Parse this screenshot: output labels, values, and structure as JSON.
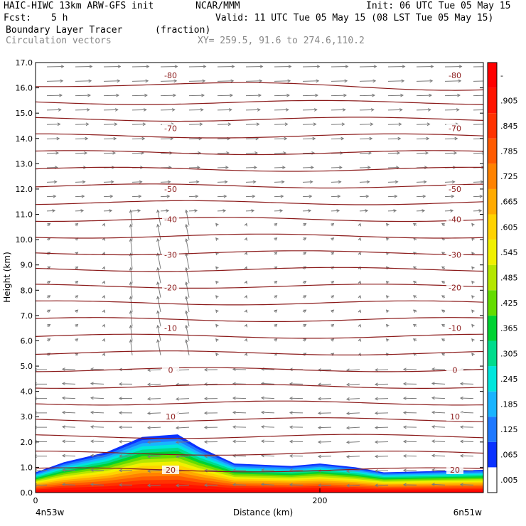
{
  "header": {
    "model": "HAIC-HIWC 13km ARW-GFS init",
    "center": "NCAR/MMM",
    "init": "Init: 06 UTC Tue 05 May 15",
    "fcst_label": "Fcst:",
    "fcst_value": "5 h",
    "valid": "Valid: 11 UTC Tue 05 May 15 (08 LST Tue 05 May 15)",
    "field": "Boundary Layer Tracer",
    "units": "(fraction)",
    "vectors": "Circulation vectors",
    "xy": "XY= 259.5, 91.6 to 274.6,110.2"
  },
  "chart_data": {
    "type": "heatmap",
    "title": "Boundary Layer Tracer",
    "xlabel": "Distance (km)",
    "ylabel": "Height (km)",
    "xlim": [
      0,
      315
    ],
    "ylim": [
      0,
      17
    ],
    "x_ticks": [
      {
        "value": 0,
        "label": "0"
      },
      {
        "value": 200,
        "label": "200"
      }
    ],
    "x_endpoints": {
      "left": "4n53w",
      "right": "6n51w"
    },
    "y_ticks": [
      "0.0",
      "1.0",
      "2.0",
      "3.0",
      "4.0",
      "5.0",
      "6.0",
      "7.0",
      "8.0",
      "9.0",
      "10.0",
      "11.0",
      "12.0",
      "13.0",
      "14.0",
      "15.0",
      "16.0",
      "17.0"
    ],
    "colorbar": {
      "labels": [
        ".005",
        ".065",
        ".125",
        ".185",
        ".245",
        ".305",
        ".365",
        ".425",
        ".485",
        ".545",
        ".605",
        ".665",
        ".725",
        ".785",
        ".845",
        ".905",
        "-"
      ],
      "colors": [
        "#ffffff",
        "#0a32ff",
        "#1e78ff",
        "#19b4ff",
        "#00e6dc",
        "#00dc8c",
        "#00d232",
        "#64dc00",
        "#b4e600",
        "#f0f000",
        "#ffd200",
        "#ffaa00",
        "#ff8200",
        "#ff5a00",
        "#ff3200",
        "#ff1400",
        "#ff0000"
      ]
    },
    "temperature_isotherms": [
      {
        "label": "20",
        "height_km": 0.9
      },
      {
        "label": "10",
        "height_km": 3.0
      },
      {
        "label": "0",
        "height_km": 4.85
      },
      {
        "label": "-10",
        "height_km": 6.5
      },
      {
        "label": "-20",
        "height_km": 8.1
      },
      {
        "label": "-30",
        "height_km": 9.4
      },
      {
        "label": "-40",
        "height_km": 10.8
      },
      {
        "label": "-50",
        "height_km": 12.0
      },
      {
        "label": "-70",
        "height_km": 14.4
      },
      {
        "label": "-80",
        "height_km": 16.5
      }
    ],
    "tracer_top_km": [
      {
        "x": 0,
        "top": 0.8
      },
      {
        "x": 20,
        "top": 1.2
      },
      {
        "x": 50,
        "top": 1.6
      },
      {
        "x": 75,
        "top": 2.2
      },
      {
        "x": 100,
        "top": 2.3
      },
      {
        "x": 115,
        "top": 1.8
      },
      {
        "x": 140,
        "top": 1.15
      },
      {
        "x": 180,
        "top": 1.05
      },
      {
        "x": 200,
        "top": 1.15
      },
      {
        "x": 225,
        "top": 1.0
      },
      {
        "x": 245,
        "top": 0.8
      },
      {
        "x": 280,
        "top": 0.85
      },
      {
        "x": 315,
        "top": 0.9
      }
    ],
    "grid": false,
    "legend": "colorbar right"
  }
}
